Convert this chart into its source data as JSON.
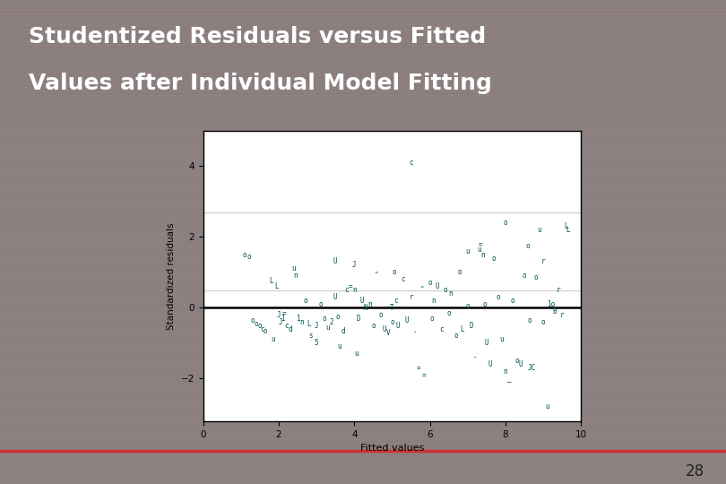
{
  "title_line1": "Studentized Residuals versus Fitted",
  "title_line2": "Values after Individual Model Fitting",
  "title_color": "#FFFFFF",
  "xlabel": "Fitted values",
  "ylabel": "Standardized residuals",
  "xlim": [
    0,
    10
  ],
  "ylim": [
    -3.2,
    5.0
  ],
  "xticks": [
    0,
    2,
    4,
    6,
    8,
    10
  ],
  "yticks": [
    -2,
    0,
    2,
    4
  ],
  "hline_zero": 0,
  "hline_gray1": 0.5,
  "hline_gray2": 2.7,
  "marker_color": "#005050",
  "bg_slide": "#8C8080",
  "bg_title": "#7A5555",
  "bg_content": "#9A9090",
  "bg_plot": "#FFFFFF",
  "bg_footer": "#B8AAAA",
  "footer_line_color": "#CC3333",
  "page_number": "28",
  "points": [
    [
      1.1,
      1.5,
      "o"
    ],
    [
      1.3,
      -0.35,
      "o"
    ],
    [
      1.4,
      -0.45,
      "o"
    ],
    [
      1.5,
      -0.5,
      "o"
    ],
    [
      1.55,
      -0.6,
      "c"
    ],
    [
      1.65,
      -0.65,
      "o"
    ],
    [
      1.8,
      0.75,
      "L"
    ],
    [
      1.85,
      -0.9,
      "u"
    ],
    [
      2.0,
      -0.2,
      "J"
    ],
    [
      1.95,
      0.6,
      "L"
    ],
    [
      2.1,
      -0.3,
      "1"
    ],
    [
      2.05,
      -0.4,
      "J"
    ],
    [
      2.15,
      -0.15,
      "="
    ],
    [
      2.2,
      -0.5,
      "c"
    ],
    [
      2.3,
      -0.6,
      "d"
    ],
    [
      2.4,
      1.1,
      "u"
    ],
    [
      2.45,
      0.9,
      "n"
    ],
    [
      2.5,
      -0.3,
      "1"
    ],
    [
      2.6,
      -0.4,
      "n"
    ],
    [
      2.7,
      0.2,
      "o"
    ],
    [
      2.8,
      -0.45,
      "L"
    ],
    [
      2.85,
      -0.8,
      "s"
    ],
    [
      3.0,
      -0.5,
      "J"
    ],
    [
      3.0,
      -1.0,
      "5"
    ],
    [
      3.1,
      0.1,
      "o"
    ],
    [
      3.2,
      -0.3,
      "o"
    ],
    [
      3.3,
      -0.55,
      "u"
    ],
    [
      3.4,
      -0.4,
      "2"
    ],
    [
      3.5,
      0.3,
      "U"
    ],
    [
      3.55,
      -0.25,
      "o"
    ],
    [
      3.6,
      -1.1,
      "u"
    ],
    [
      3.7,
      -0.65,
      "d"
    ],
    [
      3.8,
      0.5,
      "c"
    ],
    [
      3.9,
      0.6,
      "="
    ],
    [
      4.0,
      0.5,
      "n"
    ],
    [
      4.05,
      -1.3,
      "u"
    ],
    [
      4.1,
      -0.3,
      "D"
    ],
    [
      4.2,
      0.2,
      "U"
    ],
    [
      4.3,
      0.0,
      "N"
    ],
    [
      4.4,
      0.1,
      "n"
    ],
    [
      4.5,
      -0.5,
      "o"
    ],
    [
      4.6,
      0.9,
      "\""
    ],
    [
      4.7,
      -0.2,
      "o"
    ],
    [
      4.8,
      -0.6,
      "U"
    ],
    [
      4.9,
      -0.7,
      "V"
    ],
    [
      5.0,
      0.0,
      "T"
    ],
    [
      5.0,
      -0.4,
      "o"
    ],
    [
      5.1,
      0.2,
      "c"
    ],
    [
      5.15,
      -0.5,
      "U"
    ],
    [
      5.3,
      0.8,
      "c"
    ],
    [
      5.35,
      -0.1,
      "\""
    ],
    [
      5.4,
      -0.35,
      "U"
    ],
    [
      5.5,
      0.3,
      "r"
    ],
    [
      5.6,
      -0.7,
      "-"
    ],
    [
      5.7,
      -1.7,
      "="
    ],
    [
      5.8,
      0.5,
      "\""
    ],
    [
      5.85,
      -1.9,
      "="
    ],
    [
      6.0,
      0.7,
      "o"
    ],
    [
      6.05,
      -0.3,
      "o"
    ],
    [
      6.1,
      0.2,
      "n"
    ],
    [
      6.2,
      0.6,
      "U"
    ],
    [
      6.3,
      -0.6,
      "c"
    ],
    [
      6.4,
      0.5,
      "o"
    ],
    [
      6.5,
      -0.15,
      "o"
    ],
    [
      6.55,
      0.4,
      "n"
    ],
    [
      6.7,
      -0.8,
      "o"
    ],
    [
      6.8,
      1.0,
      "o"
    ],
    [
      6.85,
      -0.6,
      "L"
    ],
    [
      7.0,
      0.05,
      "o"
    ],
    [
      7.0,
      1.6,
      "u"
    ],
    [
      7.1,
      -0.5,
      "D"
    ],
    [
      7.2,
      -1.4,
      "-"
    ],
    [
      7.35,
      1.8,
      "="
    ],
    [
      7.45,
      0.1,
      "o"
    ],
    [
      7.5,
      -1.0,
      "U"
    ],
    [
      7.6,
      -1.6,
      "U"
    ],
    [
      7.7,
      1.4,
      "o"
    ],
    [
      7.8,
      0.3,
      "o"
    ],
    [
      7.9,
      -0.9,
      "u"
    ],
    [
      8.0,
      2.4,
      "o"
    ],
    [
      8.0,
      -1.8,
      "n"
    ],
    [
      8.1,
      -2.0,
      "_"
    ],
    [
      8.2,
      0.2,
      "o"
    ],
    [
      8.3,
      -1.5,
      "o"
    ],
    [
      8.4,
      -1.6,
      "U"
    ],
    [
      8.5,
      0.9,
      "o"
    ],
    [
      8.6,
      1.75,
      "o"
    ],
    [
      8.65,
      -0.35,
      "o"
    ],
    [
      8.7,
      -1.7,
      "JC"
    ],
    [
      8.8,
      0.85,
      "o"
    ],
    [
      8.9,
      2.2,
      "u"
    ],
    [
      9.0,
      -0.4,
      "o"
    ],
    [
      9.0,
      1.3,
      "r"
    ],
    [
      9.1,
      -2.8,
      "u"
    ],
    [
      9.2,
      0.1,
      "1o"
    ],
    [
      9.3,
      -0.1,
      "B"
    ],
    [
      9.4,
      0.5,
      "r"
    ],
    [
      9.5,
      -0.2,
      "r"
    ],
    [
      9.6,
      2.3,
      "L"
    ],
    [
      9.65,
      2.2,
      "L"
    ],
    [
      5.5,
      4.1,
      "c"
    ],
    [
      1.2,
      1.45,
      "o"
    ],
    [
      3.5,
      1.3,
      "U"
    ],
    [
      4.0,
      1.2,
      "J"
    ],
    [
      5.05,
      1.0,
      "o"
    ],
    [
      7.3,
      1.65,
      "u"
    ],
    [
      7.4,
      1.5,
      "n"
    ]
  ]
}
